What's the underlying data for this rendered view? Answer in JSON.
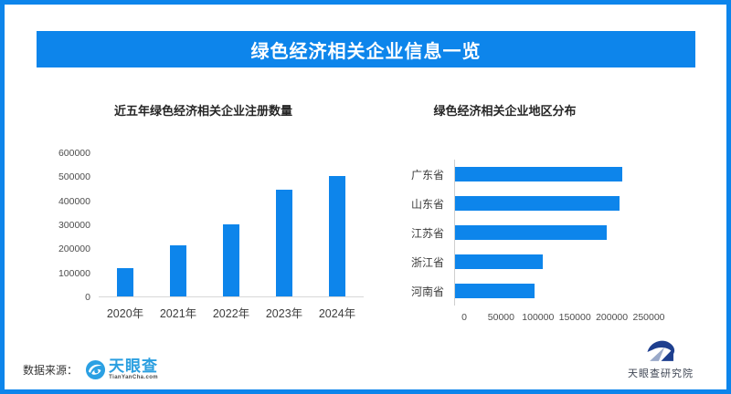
{
  "theme": {
    "accent_blue": "#0d85eb",
    "brand_light_blue": "#2b9fe0",
    "institute_navy": "#1e3f8f",
    "institute_steel": "#9aa9c9"
  },
  "header": {
    "title": "绿色经济相关企业信息一览"
  },
  "chart_data": [
    {
      "type": "bar",
      "title": "近五年绿色经济相关企业注册数量",
      "categories": [
        "2020年",
        "2021年",
        "2022年",
        "2023年",
        "2024年"
      ],
      "values": [
        118000,
        212000,
        300000,
        446000,
        502000
      ],
      "xlabel": "",
      "ylabel": "",
      "ylim": [
        0,
        600000
      ],
      "yticks": [
        0,
        100000,
        200000,
        300000,
        400000,
        500000,
        600000
      ],
      "grid": false,
      "legend": false,
      "bar_color": "#0d85eb"
    },
    {
      "type": "bar-horizontal",
      "title": "绿色经济相关企业地区分布",
      "categories": [
        "广东省",
        "山东省",
        "江苏省",
        "浙江省",
        "河南省"
      ],
      "values": [
        226000,
        223000,
        206000,
        119000,
        108000
      ],
      "xlabel": "",
      "ylabel": "",
      "xlim": [
        0,
        250000
      ],
      "xticks": [
        0,
        50000,
        100000,
        150000,
        200000,
        250000
      ],
      "grid": false,
      "legend": false,
      "bar_color": "#0d85eb"
    }
  ],
  "footer": {
    "source_label": "数据来源：",
    "source_logo": {
      "name": "天眼查",
      "subtext": "TianYanCha.com"
    },
    "institute": {
      "name": "天眼查研究院"
    }
  }
}
